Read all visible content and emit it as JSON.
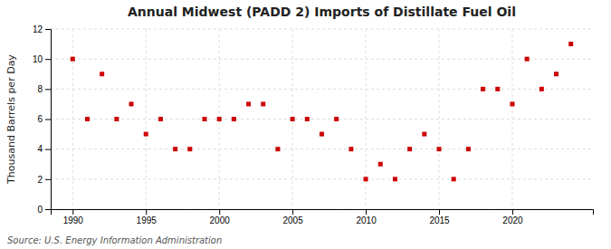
{
  "chart_data": {
    "type": "scatter",
    "title": "Annual Midwest (PADD 2) Imports of Distillate Fuel Oil",
    "ylabel": "Thousand Barrels per Day",
    "source": "Source: U.S. Energy Information Administration",
    "x": [
      1990,
      1991,
      1992,
      1993,
      1994,
      1995,
      1996,
      1997,
      1998,
      1999,
      2000,
      2001,
      2002,
      2003,
      2004,
      2005,
      2006,
      2007,
      2008,
      2009,
      2010,
      2011,
      2012,
      2013,
      2014,
      2015,
      2016,
      2017,
      2018,
      2019,
      2020,
      2021,
      2022,
      2023,
      2024
    ],
    "values": [
      10,
      6,
      9,
      6,
      7,
      5,
      6,
      4,
      4,
      6,
      6,
      6,
      7,
      7,
      4,
      6,
      6,
      5,
      6,
      4,
      2,
      3,
      2,
      4,
      5,
      4,
      2,
      4,
      8,
      8,
      7,
      10,
      8,
      9,
      11
    ],
    "color": "#cc0000",
    "marker": "square",
    "xlim": [
      1988.5,
      2025.5
    ],
    "ylim": [
      0,
      12
    ],
    "xticks": [
      1990,
      1995,
      2000,
      2005,
      2010,
      2015,
      2020
    ],
    "yticks": [
      0,
      2,
      4,
      6,
      8,
      10,
      12
    ],
    "grid": true
  }
}
